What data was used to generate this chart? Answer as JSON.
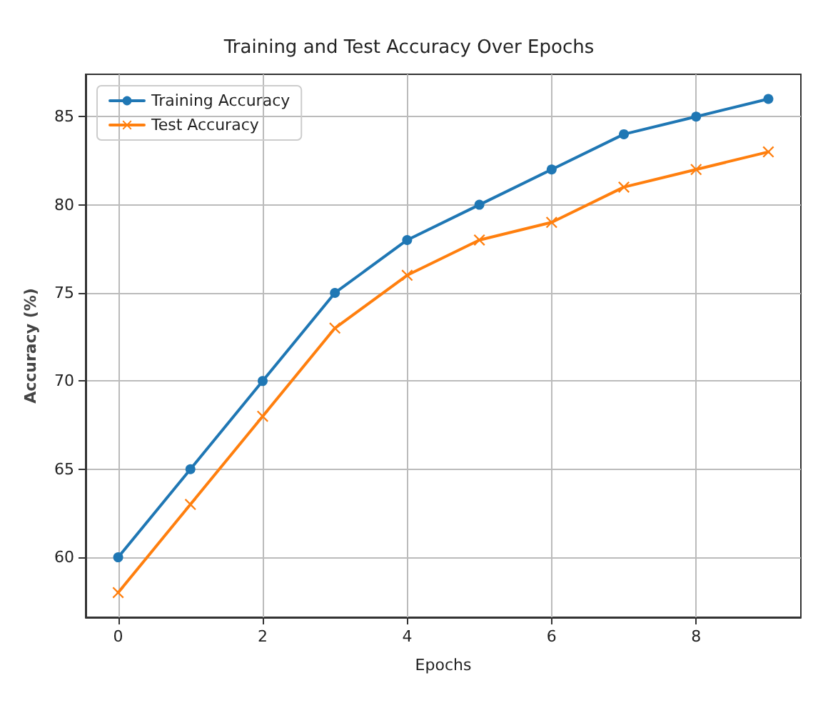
{
  "chart_data": {
    "type": "line",
    "title": "Training and Test Accuracy Over Epochs",
    "xlabel": "Epochs",
    "ylabel": "Accuracy (%)",
    "x": [
      0,
      1,
      2,
      3,
      4,
      5,
      6,
      7,
      8,
      9
    ],
    "series": [
      {
        "name": "Training Accuracy",
        "color": "#1f77b4",
        "marker": "circle",
        "values": [
          60,
          65,
          70,
          75,
          78,
          80,
          82,
          84,
          85,
          86
        ]
      },
      {
        "name": "Test Accuracy",
        "color": "#ff7f0e",
        "marker": "cross",
        "values": [
          58,
          63,
          68,
          73,
          76,
          78,
          79,
          81,
          82,
          83
        ]
      }
    ],
    "xlim": [
      -0.45,
      9.45
    ],
    "xticks": [
      0,
      2,
      4,
      6,
      8
    ],
    "ylim": [
      56.6,
      87.4
    ],
    "yticks": [
      60,
      65,
      70,
      75,
      80,
      85
    ],
    "grid": true,
    "legend": "top left"
  }
}
